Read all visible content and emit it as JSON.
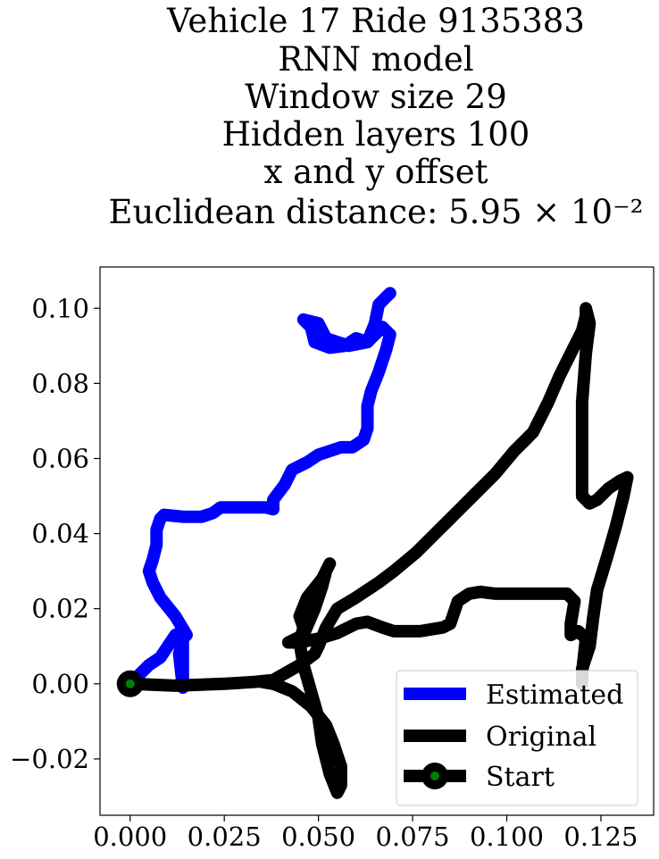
{
  "chart_data": {
    "type": "line",
    "title_lines": [
      "Vehicle 17 Ride 9135383",
      "RNN model",
      "Window size 29",
      "Hidden layers 100",
      "x and y offset",
      "Euclidean distance: 5.95 × 10⁻²"
    ],
    "xlabel": "",
    "ylabel": "",
    "xlim": [
      -0.008,
      0.139
    ],
    "ylim": [
      -0.035,
      0.111
    ],
    "x_ticks": [
      {
        "value": 0.0,
        "label": "0.000"
      },
      {
        "value": 0.025,
        "label": "0.025"
      },
      {
        "value": 0.05,
        "label": "0.050"
      },
      {
        "value": 0.075,
        "label": "0.075"
      },
      {
        "value": 0.1,
        "label": "0.100"
      },
      {
        "value": 0.125,
        "label": "0.125"
      }
    ],
    "y_ticks": [
      {
        "value": -0.02,
        "label": "−0.02"
      },
      {
        "value": 0.0,
        "label": "0.00"
      },
      {
        "value": 0.02,
        "label": "0.02"
      },
      {
        "value": 0.04,
        "label": "0.04"
      },
      {
        "value": 0.06,
        "label": "0.06"
      },
      {
        "value": 0.08,
        "label": "0.08"
      },
      {
        "value": 0.1,
        "label": "0.10"
      }
    ],
    "grid": false,
    "legend_position": "lower-right",
    "series": [
      {
        "name": "Estimated",
        "color": "#0000ff",
        "points": [
          [
            0.0,
            0.0
          ],
          [
            0.005,
            0.005
          ],
          [
            0.008,
            0.007
          ],
          [
            0.01,
            0.01
          ],
          [
            0.012,
            0.013
          ],
          [
            0.014,
            0.014
          ],
          [
            0.014,
            0.003
          ],
          [
            0.014,
            -0.001
          ],
          [
            0.013,
            0.008
          ],
          [
            0.014,
            0.012
          ],
          [
            0.015,
            0.013
          ],
          [
            0.012,
            0.018
          ],
          [
            0.008,
            0.023
          ],
          [
            0.006,
            0.027
          ],
          [
            0.005,
            0.03
          ],
          [
            0.006,
            0.033
          ],
          [
            0.007,
            0.037
          ],
          [
            0.007,
            0.041
          ],
          [
            0.008,
            0.044
          ],
          [
            0.009,
            0.045
          ],
          [
            0.014,
            0.0445
          ],
          [
            0.019,
            0.0445
          ],
          [
            0.022,
            0.0455
          ],
          [
            0.024,
            0.047
          ],
          [
            0.03,
            0.047
          ],
          [
            0.036,
            0.047
          ],
          [
            0.038,
            0.0465
          ],
          [
            0.038,
            0.049
          ],
          [
            0.041,
            0.053
          ],
          [
            0.043,
            0.057
          ],
          [
            0.047,
            0.059
          ],
          [
            0.05,
            0.061
          ],
          [
            0.053,
            0.062
          ],
          [
            0.056,
            0.063
          ],
          [
            0.059,
            0.063
          ],
          [
            0.062,
            0.065
          ],
          [
            0.063,
            0.068
          ],
          [
            0.063,
            0.074
          ],
          [
            0.064,
            0.078
          ],
          [
            0.066,
            0.083
          ],
          [
            0.068,
            0.089
          ],
          [
            0.069,
            0.093
          ],
          [
            0.067,
            0.095
          ],
          [
            0.065,
            0.093
          ],
          [
            0.063,
            0.091
          ],
          [
            0.06,
            0.092
          ],
          [
            0.057,
            0.09
          ],
          [
            0.053,
            0.0895
          ],
          [
            0.049,
            0.091
          ],
          [
            0.048,
            0.095
          ],
          [
            0.046,
            0.097
          ],
          [
            0.05,
            0.096
          ],
          [
            0.052,
            0.092
          ],
          [
            0.058,
            0.09
          ],
          [
            0.063,
            0.091
          ],
          [
            0.065,
            0.096
          ],
          [
            0.066,
            0.101
          ],
          [
            0.068,
            0.103
          ],
          [
            0.069,
            0.104
          ]
        ]
      },
      {
        "name": "Original",
        "color": "#000000",
        "points": [
          [
            0.0,
            0.0
          ],
          [
            0.012,
            -0.0005
          ],
          [
            0.025,
            0.0
          ],
          [
            0.033,
            0.0005
          ],
          [
            0.038,
            0.001
          ],
          [
            0.045,
            0.005
          ],
          [
            0.049,
            0.008
          ],
          [
            0.05,
            0.01
          ],
          [
            0.052,
            0.015
          ],
          [
            0.055,
            0.02
          ],
          [
            0.06,
            0.023
          ],
          [
            0.066,
            0.027
          ],
          [
            0.07,
            0.03
          ],
          [
            0.076,
            0.035
          ],
          [
            0.081,
            0.04
          ],
          [
            0.086,
            0.045
          ],
          [
            0.091,
            0.05
          ],
          [
            0.097,
            0.056
          ],
          [
            0.102,
            0.062
          ],
          [
            0.105,
            0.065
          ],
          [
            0.107,
            0.067
          ],
          [
            0.109,
            0.071
          ],
          [
            0.111,
            0.075
          ],
          [
            0.114,
            0.082
          ],
          [
            0.117,
            0.088
          ],
          [
            0.12,
            0.094
          ],
          [
            0.121,
            0.098
          ],
          [
            0.121,
            0.1
          ],
          [
            0.122,
            0.096
          ],
          [
            0.121,
            0.088
          ],
          [
            0.12,
            0.075
          ],
          [
            0.12,
            0.06
          ],
          [
            0.12,
            0.05
          ],
          [
            0.122,
            0.048
          ],
          [
            0.124,
            0.049
          ],
          [
            0.127,
            0.052
          ],
          [
            0.13,
            0.054
          ],
          [
            0.132,
            0.055
          ],
          [
            0.131,
            0.05
          ],
          [
            0.129,
            0.042
          ],
          [
            0.127,
            0.035
          ],
          [
            0.124,
            0.025
          ],
          [
            0.123,
            0.018
          ],
          [
            0.122,
            0.01
          ],
          [
            0.12,
            0.004
          ],
          [
            0.12,
            0.0
          ],
          [
            0.12,
            0.003
          ],
          [
            0.121,
            0.012
          ],
          [
            0.119,
            0.014
          ],
          [
            0.117,
            0.013
          ],
          [
            0.117,
            0.016
          ],
          [
            0.118,
            0.022
          ],
          [
            0.116,
            0.024
          ],
          [
            0.11,
            0.024
          ],
          [
            0.103,
            0.024
          ],
          [
            0.097,
            0.024
          ],
          [
            0.093,
            0.0245
          ],
          [
            0.09,
            0.024
          ],
          [
            0.087,
            0.022
          ],
          [
            0.086,
            0.019
          ],
          [
            0.085,
            0.016
          ],
          [
            0.083,
            0.015
          ],
          [
            0.077,
            0.014
          ],
          [
            0.07,
            0.014
          ],
          [
            0.067,
            0.015
          ],
          [
            0.063,
            0.0165
          ],
          [
            0.06,
            0.016
          ],
          [
            0.055,
            0.0135
          ],
          [
            0.05,
            0.012
          ],
          [
            0.045,
            0.011
          ],
          [
            0.042,
            0.011
          ],
          [
            0.046,
            0.013
          ],
          [
            0.049,
            0.02
          ],
          [
            0.051,
            0.026
          ],
          [
            0.052,
            0.03
          ],
          [
            0.053,
            0.032
          ],
          [
            0.051,
            0.028
          ],
          [
            0.047,
            0.023
          ],
          [
            0.045,
            0.018
          ],
          [
            0.046,
            0.015
          ],
          [
            0.045,
            0.011
          ],
          [
            0.046,
            0.005
          ],
          [
            0.048,
            -0.002
          ],
          [
            0.05,
            -0.009
          ],
          [
            0.051,
            -0.016
          ],
          [
            0.053,
            -0.024
          ],
          [
            0.055,
            -0.029
          ],
          [
            0.056,
            -0.027
          ],
          [
            0.056,
            -0.022
          ],
          [
            0.054,
            -0.016
          ],
          [
            0.052,
            -0.011
          ],
          [
            0.048,
            -0.006
          ],
          [
            0.043,
            -0.002
          ],
          [
            0.038,
            0.0
          ],
          [
            0.035,
            0.0005
          ]
        ]
      }
    ],
    "start": {
      "name": "Start",
      "x": 0.0,
      "y": 0.0,
      "outer_color": "#000000",
      "inner_color": "#008000"
    }
  }
}
